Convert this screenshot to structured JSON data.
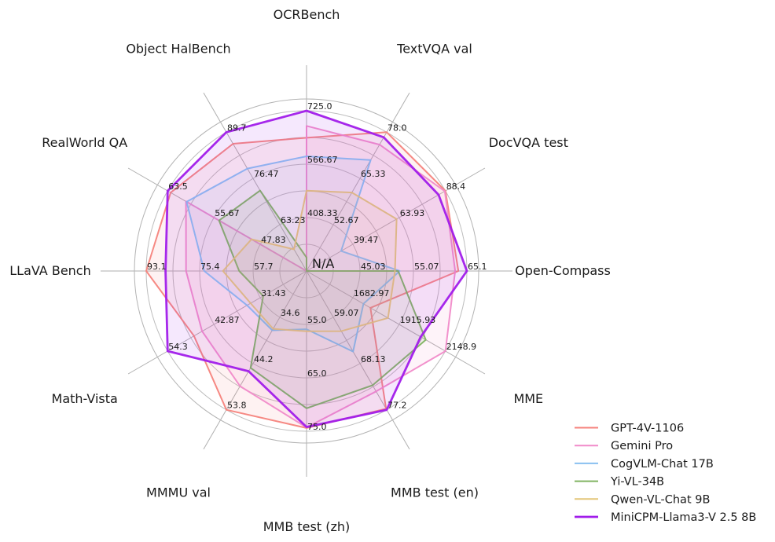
{
  "chart_data": {
    "type": "radar",
    "center_label": "N/A",
    "grid": true,
    "legend_position": "bottom-right",
    "axes": [
      {
        "label": "OCRBench",
        "ticks": [
          "408.33",
          "566.67",
          "725.0"
        ]
      },
      {
        "label": "TextVQA val",
        "ticks": [
          "52.67",
          "65.33",
          "78.0"
        ]
      },
      {
        "label": "DocVQA test",
        "ticks": [
          "39.47",
          "63.93",
          "88.4"
        ]
      },
      {
        "label": "Open-Compass",
        "ticks": [
          "45.03",
          "55.07",
          "65.1"
        ]
      },
      {
        "label": "MME",
        "ticks": [
          "1682.97",
          "1915.93",
          "2148.9"
        ]
      },
      {
        "label": "MMB test (en)",
        "ticks": [
          "59.07",
          "68.13",
          "77.2"
        ]
      },
      {
        "label": "MMB test (zh)",
        "ticks": [
          "55.0",
          "65.0",
          "75.0"
        ]
      },
      {
        "label": "MMMU val",
        "ticks": [
          "34.6",
          "44.2",
          "53.8"
        ]
      },
      {
        "label": "Math-Vista",
        "ticks": [
          "31.43",
          "42.87",
          "54.3"
        ]
      },
      {
        "label": "LLaVA Bench",
        "ticks": [
          "57.7",
          "75.4",
          "93.1"
        ]
      },
      {
        "label": "RealWorld QA",
        "ticks": [
          "47.83",
          "55.67",
          "63.5"
        ]
      },
      {
        "label": "Object HalBench",
        "ticks": [
          "63.23",
          "76.47",
          "89.7"
        ]
      }
    ],
    "series": [
      {
        "name": "GPT-4V-1106",
        "color": "#F6837C",
        "line_width": 2,
        "values": [
          645,
          78.0,
          88.4,
          63.5,
          1771.5,
          77.0,
          74.4,
          53.8,
          47.8,
          93.1,
          63.0,
          86.4
        ]
      },
      {
        "name": "Gemini Pro",
        "color": "#F18BC9",
        "line_width": 2,
        "values": [
          680,
          74.6,
          88.1,
          62.9,
          2148.9,
          73.6,
          74.3,
          48.9,
          45.8,
          79.9,
          60.4,
          null
        ]
      },
      {
        "name": "CogVLM-Chat 17B",
        "color": "#89BFF0",
        "line_width": 2,
        "values": [
          590,
          70.4,
          33.3,
          52.5,
          1736.6,
          65.8,
          55.9,
          37.3,
          34.7,
          73.9,
          60.3,
          79.3
        ]
      },
      {
        "name": "Yi-VL-34B",
        "color": "#80B361",
        "line_width": 2,
        "values": [
          290,
          null,
          null,
          52.2,
          2050.2,
          72.4,
          70.7,
          45.1,
          30.7,
          62.3,
          54.8,
          73.0
        ]
      },
      {
        "name": "Qwen-VL-Chat 9B",
        "color": "#E4C678",
        "line_width": 2,
        "values": [
          488,
          61.5,
          62.6,
          51.6,
          1860.0,
          61.8,
          56.3,
          37.0,
          33.8,
          67.7,
          49.3,
          56.2
        ]
      },
      {
        "name": "MiniCPM-Llama3-V 2.5 8B",
        "color": "#A11CEA",
        "line_width": 2.8,
        "values": [
          725,
          76.6,
          84.8,
          65.1,
          2024.6,
          77.2,
          74.2,
          45.8,
          54.3,
          86.7,
          63.5,
          89.7
        ]
      }
    ]
  }
}
